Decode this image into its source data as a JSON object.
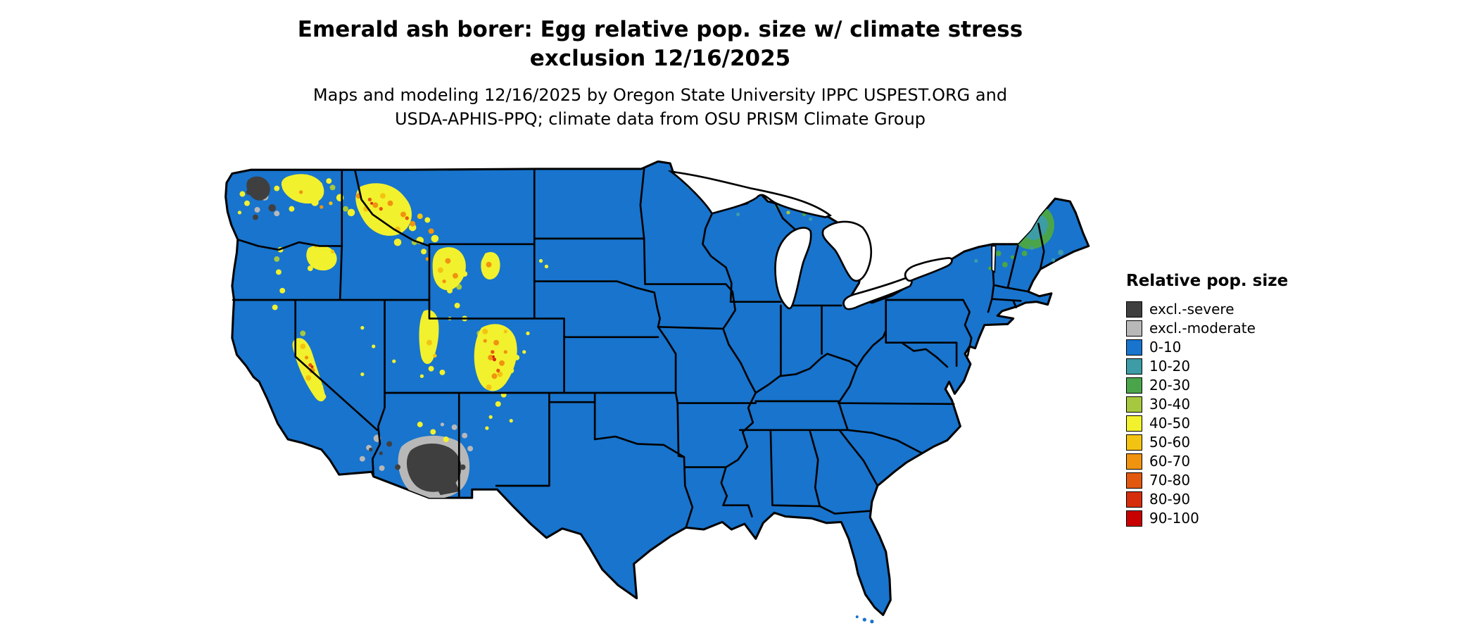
{
  "title": {
    "line1": "Emerald ash borer: Egg relative pop. size w/ climate stress",
    "line2": "exclusion 12/16/2025"
  },
  "subtitle": {
    "line1": "Maps and modeling 12/16/2025 by Oregon State University IPPC USPEST.ORG and",
    "line2": "USDA-APHIS-PPQ; climate data from OSU PRISM Climate Group"
  },
  "legend": {
    "title": "Relative pop. size",
    "items": [
      {
        "key": "excl_severe",
        "label": "excl.-severe",
        "color": "#3f3f3f"
      },
      {
        "key": "excl_moderate",
        "label": "excl.-moderate",
        "color": "#b8b8b8"
      },
      {
        "key": "v0_10",
        "label": "0-10",
        "color": "#1874cd"
      },
      {
        "key": "v10_20",
        "label": "10-20",
        "color": "#3d9ca6"
      },
      {
        "key": "v20_30",
        "label": "20-30",
        "color": "#4aa54a"
      },
      {
        "key": "v30_40",
        "label": "30-40",
        "color": "#a6c83f"
      },
      {
        "key": "v40_50",
        "label": "40-50",
        "color": "#f2f12d"
      },
      {
        "key": "v50_60",
        "label": "50-60",
        "color": "#f3c311"
      },
      {
        "key": "v60_70",
        "label": "60-70",
        "color": "#f0930f"
      },
      {
        "key": "v70_80",
        "label": "70-80",
        "color": "#e2580e"
      },
      {
        "key": "v80_90",
        "label": "80-90",
        "color": "#d62e0d"
      },
      {
        "key": "v90_100",
        "label": "90-100",
        "color": "#c90000"
      }
    ]
  },
  "map": {
    "region": "Continental United States",
    "colors": {
      "lakes": "#ffffff",
      "border": "#000000",
      "background": "#ffffff"
    }
  }
}
